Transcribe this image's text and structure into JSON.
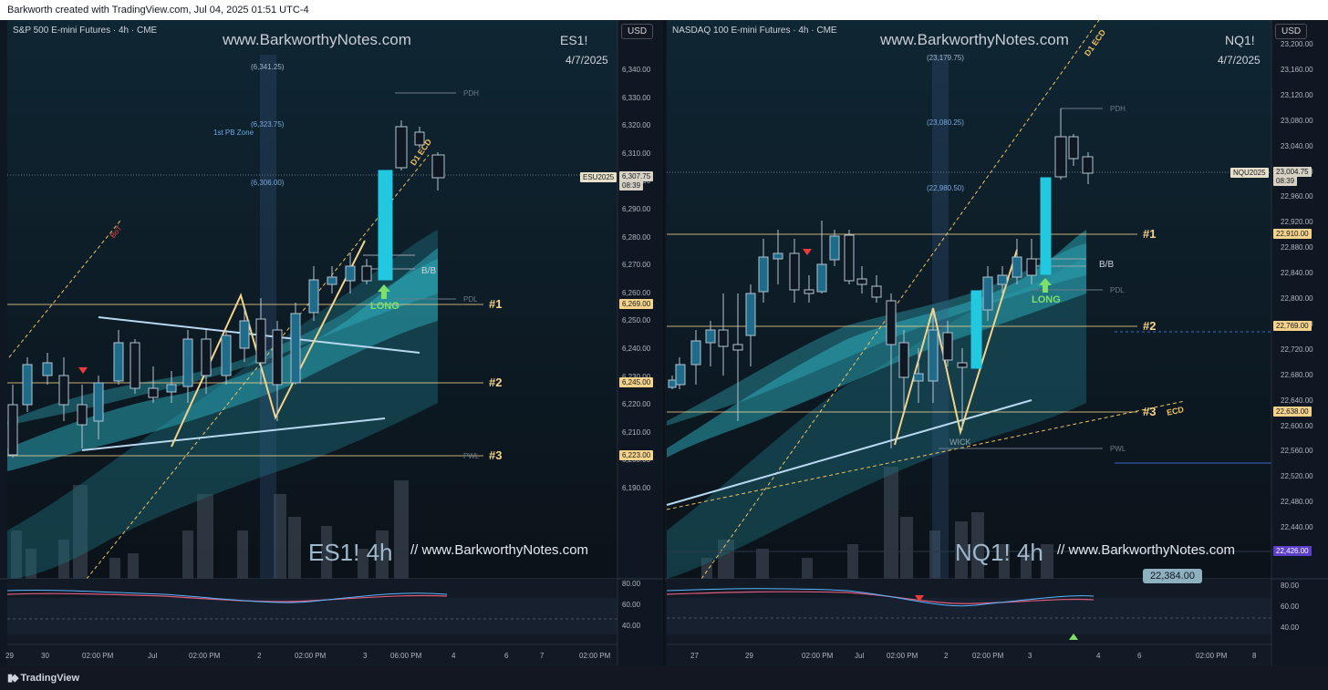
{
  "header": {
    "text": "Barkworth created with TradingView.com, Jul 04, 2025 01:51 UTC-4"
  },
  "footer": {
    "brand": "TradingView",
    "logo_icon": "tradingview-logo-icon"
  },
  "left": {
    "symbol_line": "S&P 500 E-mini Futures · 4h · CME",
    "watermark": "www.BarkworthyNotes.com",
    "ticker": "ES1!",
    "date": "4/7/2025",
    "currency": "USD",
    "y_ticks": [
      "6,340.00",
      "6,330.00",
      "6,320.00",
      "6,310.00",
      "6,300.00",
      "6,290.00",
      "6,280.00",
      "6,270.00",
      "6,260.00",
      "6,250.00",
      "6,240.00",
      "6,230.00",
      "6,220.00",
      "6,210.00",
      "6,200.00",
      "6,190.00"
    ],
    "osc_ticks": [
      "80.00",
      "60.00",
      "40.00"
    ],
    "x_ticks": [
      "29",
      "30",
      "02:00 PM",
      "Jul",
      "02:00 PM",
      "2",
      "02:00 PM",
      "3",
      "06:00 PM",
      "4",
      "6",
      "7",
      "02:00 PM"
    ],
    "current": {
      "contract": "ESU2025",
      "price": "6,307.75",
      "countdown": "08:39"
    },
    "level_tags": [
      "6,269.00",
      "6,245.00",
      "6,223.00"
    ],
    "levels": [
      "#1",
      "#2",
      "#3"
    ],
    "annotations": {
      "target_high": "(6,341.25)",
      "target_mid": "(6,323.75)",
      "target_low": "(6,306.00)",
      "zone": "1st PB Zone",
      "pdh": "PDH",
      "pdl": "PDL",
      "pwl": "PWL",
      "bb": "B/B",
      "long": "LONG",
      "d1ecd": "D1 ECD",
      "bot": "BoT"
    },
    "big_watermark": "ES1! 4h",
    "small_watermark": "// www.BarkworthyNotes.com",
    "colors": {
      "accent": "#22c7e0",
      "level": "#f5d38a",
      "long": "#7ee06a"
    }
  },
  "right": {
    "symbol_line": "NASDAQ 100 E-mini Futures · 4h · CME",
    "watermark": "www.BarkworthyNotes.com",
    "ticker": "NQ1!",
    "date": "4/7/2025",
    "currency": "USD",
    "y_ticks": [
      "23,200.00",
      "23,160.00",
      "23,120.00",
      "23,080.00",
      "23,040.00",
      "23,000.00",
      "22,960.00",
      "22,920.00",
      "22,880.00",
      "22,840.00",
      "22,800.00",
      "22,760.00",
      "22,720.00",
      "22,680.00",
      "22,640.00",
      "22,600.00",
      "22,560.00",
      "22,520.00",
      "22,480.00",
      "22,440.00"
    ],
    "osc_ticks": [
      "80.00",
      "60.00",
      "40.00"
    ],
    "x_ticks": [
      "27",
      "29",
      "02:00 PM",
      "Jul",
      "02:00 PM",
      "2",
      "02:00 PM",
      "3",
      "4",
      "6",
      "02:00 PM",
      "8"
    ],
    "current": {
      "contract": "NQU2025",
      "price": "23,004.75",
      "countdown": "08:39"
    },
    "level_tags": [
      "22,910.00",
      "22,769.00",
      "22,638.00",
      "22,426.00"
    ],
    "levels": [
      "#1",
      "#2",
      "#3"
    ],
    "annotations": {
      "target_high": "(23,179.75)",
      "target_mid": "(23,080.25)",
      "target_low": "(22,980.50)",
      "pdh": "PDH",
      "pdl": "PDL",
      "pwl": "PWL",
      "bb": "B/B",
      "long": "LONG",
      "d1ecd": "D1 ECD",
      "ecd": "ECD",
      "wick": "WICK",
      "cursor_price": "22,384.00"
    },
    "big_watermark": "NQ1! 4h",
    "small_watermark": "// www.BarkworthyNotes.com",
    "colors": {
      "accent": "#22c7e0",
      "level": "#f5d38a",
      "long": "#7ee06a"
    }
  }
}
